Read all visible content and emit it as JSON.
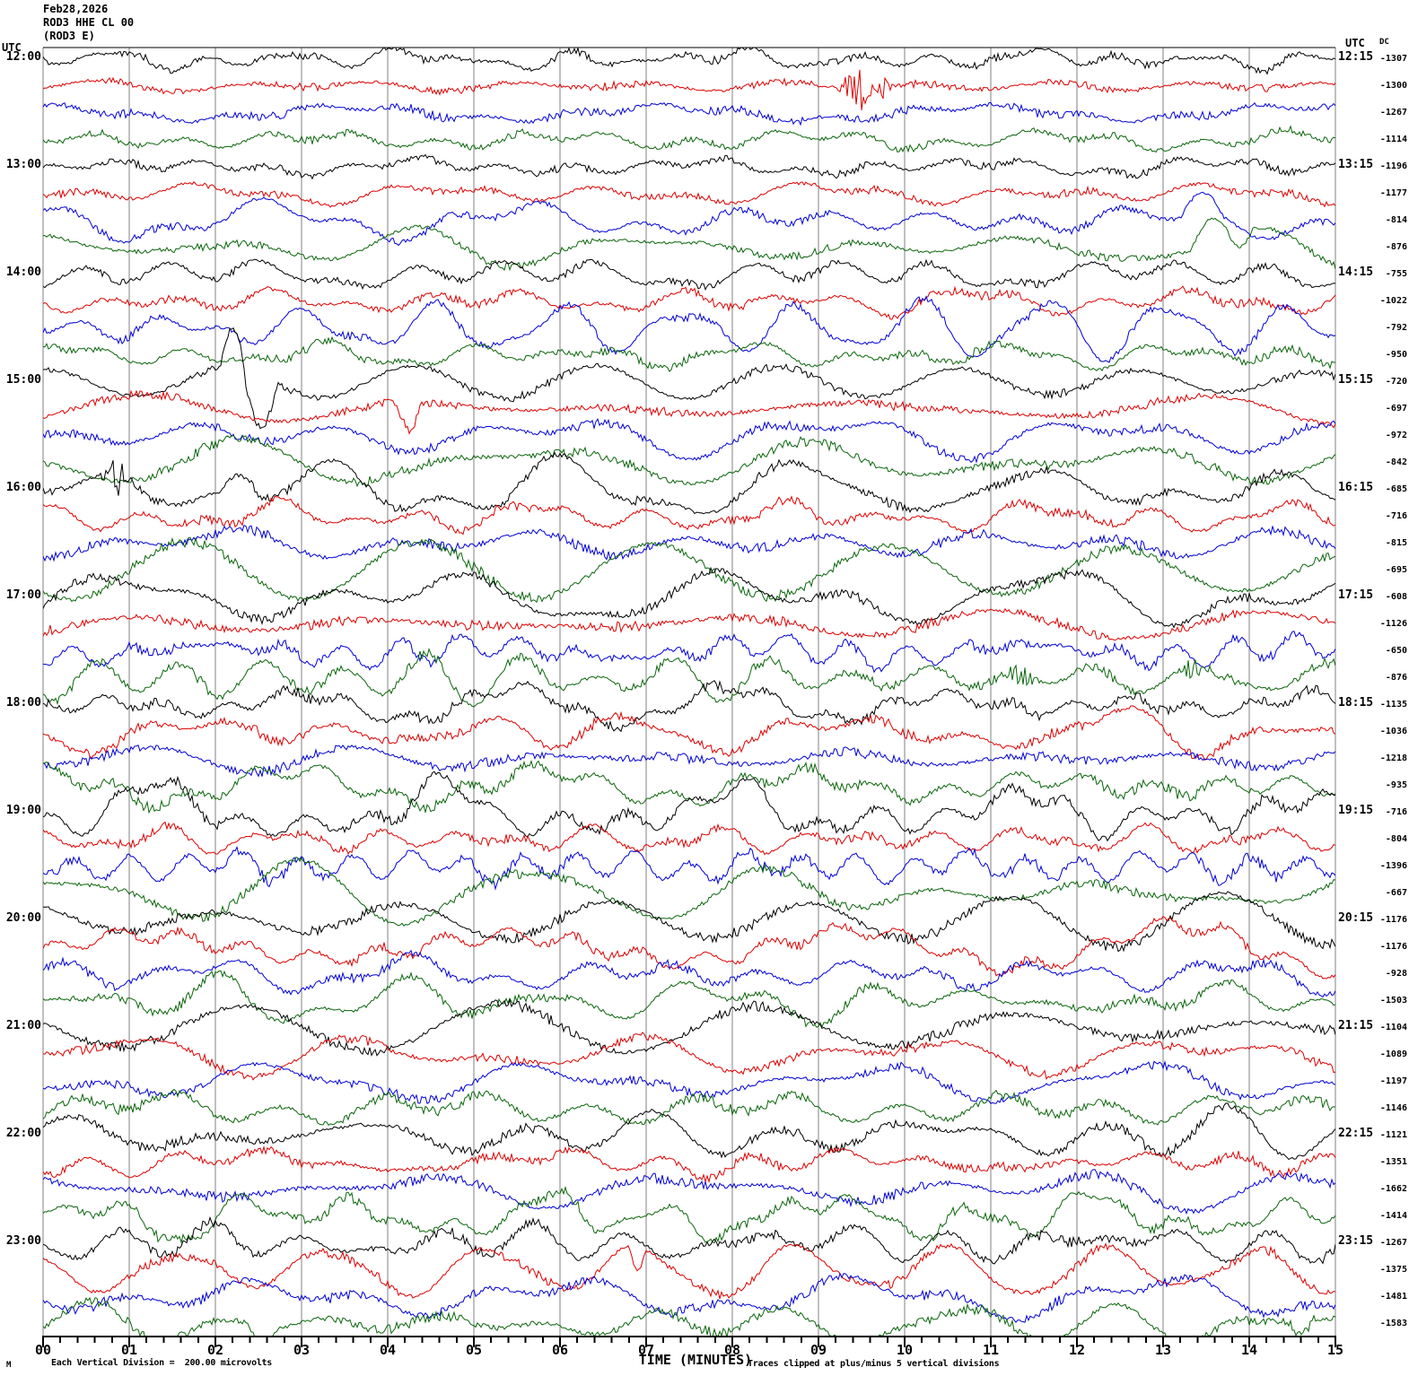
{
  "header": {
    "date": "Feb28,2026",
    "station": "ROD3 HHE CL 00",
    "channel": "(ROD3 E)"
  },
  "axes": {
    "left_utc": "UTC",
    "right_utc": "UTC",
    "dc_header": "DC",
    "x_title": "TIME (MINUTES)",
    "x_ticks": [
      "00",
      "01",
      "02",
      "03",
      "04",
      "05",
      "06",
      "07",
      "08",
      "09",
      "10",
      "11",
      "12",
      "13",
      "14",
      "15"
    ],
    "left_times": [
      "12:00",
      "13:00",
      "14:00",
      "15:00",
      "16:00",
      "17:00",
      "18:00",
      "19:00",
      "20:00",
      "21:00",
      "22:00",
      "23:00"
    ],
    "right_times": [
      "12:15",
      "13:15",
      "14:15",
      "15:15",
      "16:15",
      "17:15",
      "18:15",
      "19:15",
      "20:15",
      "21:15",
      "22:15",
      "23:15"
    ]
  },
  "footer": {
    "left_glyph": "M",
    "left": "Each Vertical Division =  200.00 microvolts",
    "right": "Traces clipped at plus/minus 5 vertical divisions"
  },
  "colors": {
    "trace_cycle": [
      "#000000",
      "#dd0000",
      "#0000d8",
      "#0a660a"
    ],
    "grid": "#808080",
    "axis": "#000000",
    "background": "#ffffff"
  },
  "chart_data": {
    "type": "line",
    "subtype": "helicorder-seismogram",
    "title": "ROD3 HHE CL 00 (ROD3 E) Feb28,2026",
    "xlabel": "TIME (MINUTES)",
    "x_range_minutes": [
      0,
      15
    ],
    "row_duration_minutes": 15,
    "rows": 48,
    "start_time_utc": "12:00",
    "end_time_utc": "24:00",
    "vertical_division_microvolts": 200.0,
    "clip_divisions": 5,
    "grid": "vertical lines each minute",
    "legend_position": "none",
    "traces": [
      {
        "dc": -1307,
        "lf": 4,
        "hf": 3
      },
      {
        "dc": -1300,
        "lf": 3.5,
        "hf": 3,
        "ev": [
          {
            "type": "burst",
            "t": 9.45,
            "dur": 0.5,
            "amp": 32
          },
          {
            "type": "burst",
            "t": 9.75,
            "dur": 0.2,
            "amp": 14
          }
        ]
      },
      {
        "dc": -1267,
        "lf": 4.5,
        "hf": 3.5,
        "ev": [
          {
            "type": "burst",
            "t": 8.75,
            "dur": 0.25,
            "amp": 9
          }
        ]
      },
      {
        "dc": -1114,
        "lf": 5,
        "hf": 3
      },
      {
        "dc": -1196,
        "lf": 6,
        "hf": 3
      },
      {
        "dc": -1177,
        "lf": 6,
        "hf": 3
      },
      {
        "dc": -814,
        "lf": 8,
        "hf": 3,
        "ev": [
          {
            "type": "swing",
            "t": 13.45,
            "dur": 0.5,
            "amp": -22
          }
        ]
      },
      {
        "dc": -876,
        "lf": 8,
        "hf": 3,
        "ev": [
          {
            "type": "swing",
            "t": 13.55,
            "dur": 0.45,
            "amp": -26
          },
          {
            "type": "swing",
            "t": 13.9,
            "dur": 0.3,
            "amp": 18
          }
        ]
      },
      {
        "dc": -755,
        "lf": 7,
        "hf": 3
      },
      {
        "dc": -1022,
        "lf": 7,
        "hf": 3.5
      },
      {
        "dc": -792,
        "lf": 9,
        "hf": 3
      },
      {
        "dc": -950,
        "lf": 9,
        "hf": 3.5
      },
      {
        "dc": -720,
        "lf": 10,
        "hf": 3,
        "ev": [
          {
            "type": "swing",
            "t": 2.2,
            "dur": 0.28,
            "amp": -45
          },
          {
            "type": "swing",
            "t": 2.52,
            "dur": 0.4,
            "amp": 58
          }
        ]
      },
      {
        "dc": -697,
        "lf": 9,
        "hf": 3.5,
        "ev": [
          {
            "type": "swing",
            "t": 4.25,
            "dur": 0.3,
            "amp": 30
          }
        ]
      },
      {
        "dc": -972,
        "lf": 11,
        "hf": 3.5
      },
      {
        "dc": -842,
        "lf": 11,
        "hf": 4
      },
      {
        "dc": -685,
        "lf": 11,
        "hf": 3.5,
        "ev": [
          {
            "type": "burst",
            "t": 0.85,
            "dur": 0.4,
            "amp": 24
          },
          {
            "type": "swing",
            "t": 2.3,
            "dur": 0.5,
            "amp": -20
          }
        ]
      },
      {
        "dc": -716,
        "lf": 9,
        "hf": 3.5
      },
      {
        "dc": -815,
        "lf": 10,
        "hf": 4
      },
      {
        "dc": -695,
        "lf": 10,
        "hf": 4
      },
      {
        "dc": -608,
        "lf": 12,
        "hf": 3.5
      },
      {
        "dc": -1126,
        "lf": 11,
        "hf": 4
      },
      {
        "dc": -650,
        "lf": 10,
        "hf": 4
      },
      {
        "dc": -876,
        "lf": 10,
        "hf": 4,
        "ev": [
          {
            "type": "burst",
            "t": 11.35,
            "dur": 0.5,
            "amp": 17
          },
          {
            "type": "burst",
            "t": 13.35,
            "dur": 0.4,
            "amp": 17
          }
        ]
      },
      {
        "dc": -1135,
        "lf": 12,
        "hf": 4
      },
      {
        "dc": -1036,
        "lf": 10,
        "hf": 4
      },
      {
        "dc": -1218,
        "lf": 10,
        "hf": 4
      },
      {
        "dc": -935,
        "lf": 11,
        "hf": 4
      },
      {
        "dc": -716,
        "lf": 12,
        "hf": 4
      },
      {
        "dc": -804,
        "lf": 8,
        "hf": 3.5
      },
      {
        "dc": -1396,
        "lf": 11,
        "hf": 4
      },
      {
        "dc": -667,
        "lf": 9,
        "hf": 3.5
      },
      {
        "dc": -1176,
        "lf": 12,
        "hf": 4
      },
      {
        "dc": -1176,
        "lf": 9,
        "hf": 3.5
      },
      {
        "dc": -928,
        "lf": 9,
        "hf": 3.5
      },
      {
        "dc": -1503,
        "lf": 9,
        "hf": 3.5
      },
      {
        "dc": -1104,
        "lf": 11,
        "hf": 4
      },
      {
        "dc": -1089,
        "lf": 9,
        "hf": 3.5
      },
      {
        "dc": -1197,
        "lf": 10,
        "hf": 3.5
      },
      {
        "dc": -1146,
        "lf": 10,
        "hf": 4
      },
      {
        "dc": -1121,
        "lf": 11,
        "hf": 4
      },
      {
        "dc": -1351,
        "lf": 9,
        "hf": 3.5
      },
      {
        "dc": -1662,
        "lf": 10,
        "hf": 4
      },
      {
        "dc": -1414,
        "lf": 10,
        "hf": 4
      },
      {
        "dc": -1267,
        "lf": 11,
        "hf": 4
      },
      {
        "dc": -1375,
        "lf": 9,
        "hf": 3.5,
        "ev": [
          {
            "type": "swing",
            "t": 6.9,
            "dur": 0.2,
            "amp": 26
          }
        ]
      },
      {
        "dc": -1481,
        "lf": 10,
        "hf": 4
      },
      {
        "dc": -1583,
        "lf": 10,
        "hf": 4,
        "ev": [
          {
            "type": "swing",
            "t": 2.55,
            "dur": 0.35,
            "amp": 18
          },
          {
            "type": "swing",
            "t": 14.6,
            "dur": 0.3,
            "amp": 15
          }
        ]
      }
    ]
  }
}
